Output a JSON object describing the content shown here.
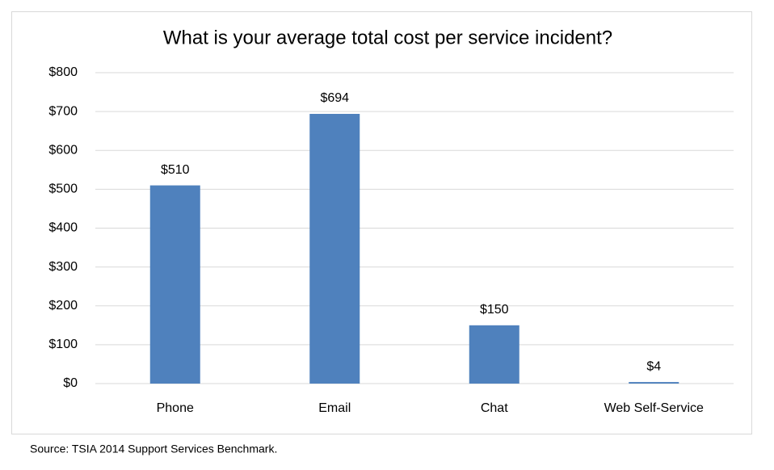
{
  "chart_data": {
    "type": "bar",
    "title": "What is your average total cost per service incident?",
    "categories": [
      "Phone",
      "Email",
      "Chat",
      "Web Self-Service"
    ],
    "values": [
      510,
      694,
      150,
      4
    ],
    "value_labels": [
      "$510",
      "$694",
      "$150",
      "$4"
    ],
    "color": "#4f81bd",
    "ylim": [
      0,
      800
    ],
    "yticks": [
      {
        "value": 0,
        "label": "$0"
      },
      {
        "value": 100,
        "label": "$100"
      },
      {
        "value": 200,
        "label": "$200"
      },
      {
        "value": 300,
        "label": "$300"
      },
      {
        "value": 400,
        "label": "$400"
      },
      {
        "value": 500,
        "label": "$500"
      },
      {
        "value": 600,
        "label": "$600"
      },
      {
        "value": 700,
        "label": "$700"
      },
      {
        "value": 800,
        "label": "$800"
      }
    ],
    "grid": true,
    "source": "Source: TSIA 2014 Support Services Benchmark."
  }
}
